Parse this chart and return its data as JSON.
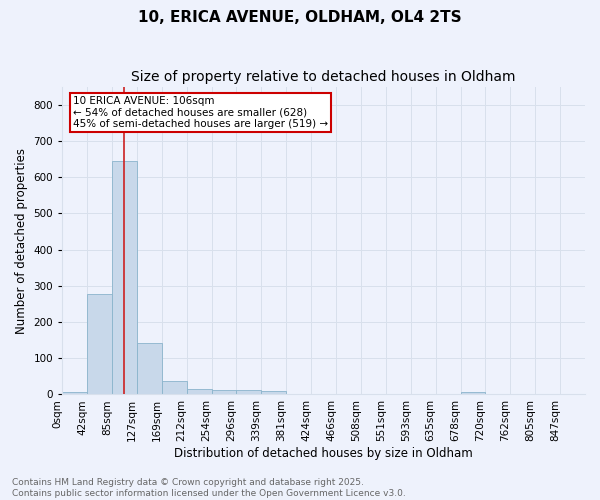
{
  "title1": "10, ERICA AVENUE, OLDHAM, OL4 2TS",
  "title2": "Size of property relative to detached houses in Oldham",
  "xlabel": "Distribution of detached houses by size in Oldham",
  "ylabel": "Number of detached properties",
  "bin_labels": [
    "0sqm",
    "42sqm",
    "85sqm",
    "127sqm",
    "169sqm",
    "212sqm",
    "254sqm",
    "296sqm",
    "339sqm",
    "381sqm",
    "424sqm",
    "466sqm",
    "508sqm",
    "551sqm",
    "593sqm",
    "635sqm",
    "678sqm",
    "720sqm",
    "762sqm",
    "805sqm",
    "847sqm"
  ],
  "bar_heights": [
    8,
    278,
    644,
    142,
    36,
    15,
    12,
    12,
    9,
    0,
    0,
    0,
    0,
    0,
    0,
    0,
    7,
    0,
    0,
    0,
    0
  ],
  "bar_color": "#c8d8ea",
  "bar_edge_color": "#8ab4cc",
  "annotation_text": "10 ERICA AVENUE: 106sqm\n← 54% of detached houses are smaller (628)\n45% of semi-detached houses are larger (519) →",
  "annotation_box_color": "#ffffff",
  "annotation_box_edge": "#cc0000",
  "red_line_color": "#cc2222",
  "grid_color": "#d8e0ec",
  "background_color": "#eef2fc",
  "ylim": [
    0,
    850
  ],
  "yticks": [
    0,
    100,
    200,
    300,
    400,
    500,
    600,
    700,
    800
  ],
  "footer": "Contains HM Land Registry data © Crown copyright and database right 2025.\nContains public sector information licensed under the Open Government Licence v3.0.",
  "title_fontsize": 11,
  "subtitle_fontsize": 10,
  "axis_label_fontsize": 8.5,
  "tick_fontsize": 7.5,
  "annotation_fontsize": 7.5,
  "footer_fontsize": 6.5
}
